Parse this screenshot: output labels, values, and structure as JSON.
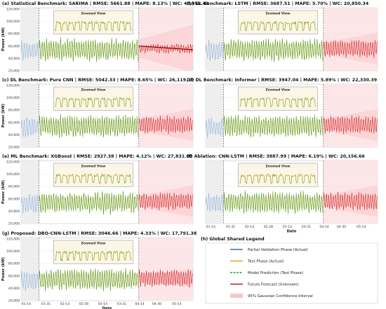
{
  "chart_data": [
    {
      "panel_id": "a",
      "type": "line",
      "title": "(a) Statistical Benchmark: SARIMA | RMSE: 5661.88 | MAPE: 8.13% | WC: 48,952.43",
      "ylabel": "Power (kW)",
      "xlabel": "",
      "yticks": [
        "20,000",
        "40,000",
        "60,000",
        "80,000",
        "100,000",
        "120,000"
      ],
      "ylim": [
        20000,
        122000
      ],
      "xticks": [],
      "inset_label": "Zoomed View",
      "forecast_band": "wide"
    },
    {
      "panel_id": "b",
      "type": "line",
      "title": "(b) DL Benchmark: LSTM | RMSE: 3687.51 | MAPE: 5.70% | WC: 20,850.34",
      "ylabel": "",
      "xlabel": "",
      "yticks": [],
      "ylim": [
        20000,
        122000
      ],
      "xticks": [],
      "inset_label": "Zoomed View",
      "forecast_band": "medium"
    },
    {
      "panel_id": "c",
      "type": "line",
      "title": "(c) DL Benchmark: Pure CNN | RMSE: 5042.33 | MAPE: 8.65% | WC: 26,119.19",
      "ylabel": "Power (kW)",
      "xlabel": "",
      "yticks": [
        "20,000",
        "40,000",
        "60,000",
        "80,000",
        "100,000",
        "120,000"
      ],
      "ylim": [
        20000,
        122000
      ],
      "xticks": [],
      "inset_label": "Zoomed View",
      "forecast_band": "medium"
    },
    {
      "panel_id": "d",
      "type": "line",
      "title": "(d) DL Benchmark: Informer | RMSE: 3947.04 | MAPE: 5.89% | WC: 22,330.39",
      "ylabel": "",
      "xlabel": "",
      "yticks": [],
      "ylim": [
        20000,
        122000
      ],
      "xticks": [],
      "inset_label": "Zoomed View",
      "forecast_band": "medium"
    },
    {
      "panel_id": "e",
      "type": "line",
      "title": "(e) ML Benchmark: XGBoost | RMSE: 2927.38 | MAPE: 4.12% | WC: 27,831.08",
      "ylabel": "Power (kW)",
      "xlabel": "",
      "yticks": [
        "20,000",
        "40,000",
        "60,000",
        "80,000",
        "100,000",
        "120,000"
      ],
      "ylim": [
        20000,
        122000
      ],
      "xticks": [],
      "inset_label": "Zoomed View",
      "forecast_band": "medium"
    },
    {
      "panel_id": "f",
      "type": "line",
      "title": "(f) Ablation: CNN-LSTM | RMSE: 3887.99 | MAPE: 6.19% | WC: 20,156.66",
      "ylabel": "",
      "xlabel": "Date",
      "yticks": [],
      "ylim": [
        20000,
        122000
      ],
      "xticks": [
        "01-14",
        "01-31",
        "02-14",
        "02-28",
        "03-14",
        "03-31",
        "04-14",
        "04-30",
        "05-14"
      ],
      "inset_label": "Zoomed View",
      "forecast_band": "medium"
    },
    {
      "panel_id": "g",
      "type": "line",
      "title": "(g) Proposed: DBO-CNN-LSTM | RMSE: 3046.66 | MAPE: 4.33% | WC: 17,791.38",
      "ylabel": "Power (kW)",
      "xlabel": "Date",
      "yticks": [
        "20,000",
        "40,000",
        "60,000",
        "80,000",
        "100,000",
        "120,000"
      ],
      "ylim": [
        20000,
        122000
      ],
      "xticks": [
        "01-14",
        "01-31",
        "02-14",
        "02-28",
        "03-14",
        "03-31",
        "04-14",
        "04-30",
        "05-14"
      ],
      "inset_label": "Zoomed View",
      "forecast_band": "narrow"
    }
  ],
  "legend": {
    "title": "(h) Global Shared Legend",
    "entries": [
      {
        "label": "Partial Validation Phase (Actual)",
        "color": "#3b6fb6",
        "style": "solid"
      },
      {
        "label": "Test Phase (Actual)",
        "color": "#e6a019",
        "style": "solid"
      },
      {
        "label": "Model Prediction (Test Phase)",
        "color": "#2ca02c",
        "style": "dashed"
      },
      {
        "label": "Future Forecast (Unknown)",
        "color": "#b22222",
        "style": "solid"
      },
      {
        "label": "95% Gaussian Confidence Interval",
        "color": "#f6c5c8",
        "style": "band"
      }
    ]
  },
  "colors": {
    "validation": "#8fb3dc",
    "test": "#e6a019",
    "prediction": "#2ca02c",
    "forecast": "#d62728",
    "ci": "#fbd3d5",
    "inset_bg": "#fbf6e6"
  }
}
